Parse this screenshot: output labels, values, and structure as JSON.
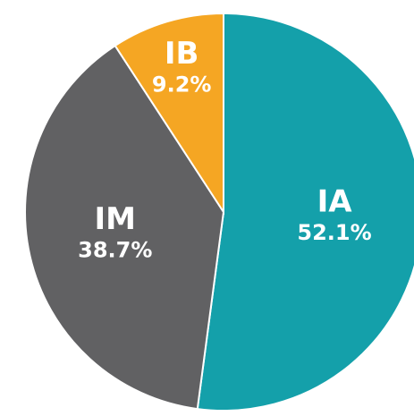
{
  "chart_data": {
    "type": "pie",
    "categories": [
      "IA",
      "IM",
      "IB"
    ],
    "values": [
      52.1,
      38.7,
      9.2
    ],
    "value_labels": [
      "52.1%",
      "38.7%",
      "9.2%"
    ],
    "colors": [
      "#14a0aa",
      "#616163",
      "#f5a623"
    ]
  }
}
